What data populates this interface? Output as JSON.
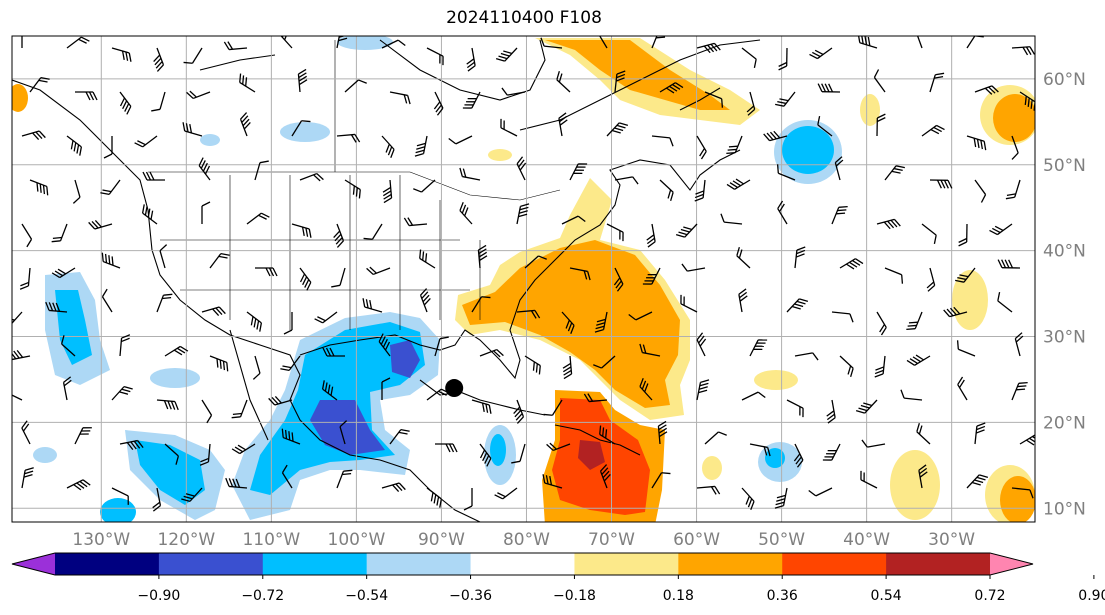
{
  "title": "2024110400 F108",
  "map": {
    "lon_labels": [
      "130°W",
      "120°W",
      "110°W",
      "100°W",
      "90°W",
      "80°W",
      "70°W",
      "60°W",
      "50°W",
      "40°W",
      "30°W"
    ],
    "lat_labels": [
      "60°N",
      "50°N",
      "40°N",
      "30°N",
      "20°N",
      "10°N"
    ],
    "lon_grid": [
      -130,
      -120,
      -110,
      -100,
      -90,
      -80,
      -70,
      -60,
      -50,
      -40,
      -30
    ],
    "lat_grid": [
      60,
      50,
      40,
      30,
      20,
      10
    ],
    "gridline_color": "#b0b0b0",
    "coastline_color": "#000000",
    "marker": {
      "lon": -88.5,
      "lat": 24
    }
  },
  "colorbar": {
    "labels": [
      "−0.90",
      "−0.72",
      "−0.54",
      "−0.36",
      "−0.18",
      "0.18",
      "0.36",
      "0.54",
      "0.72",
      "0.90"
    ],
    "colors": [
      "#9b30d9",
      "#000080",
      "#3a50d0",
      "#00bfff",
      "#add8f5",
      "#ffffff",
      "#fce98a",
      "#ffa500",
      "#ff4500",
      "#b22222",
      "#ff85b0"
    ]
  }
}
